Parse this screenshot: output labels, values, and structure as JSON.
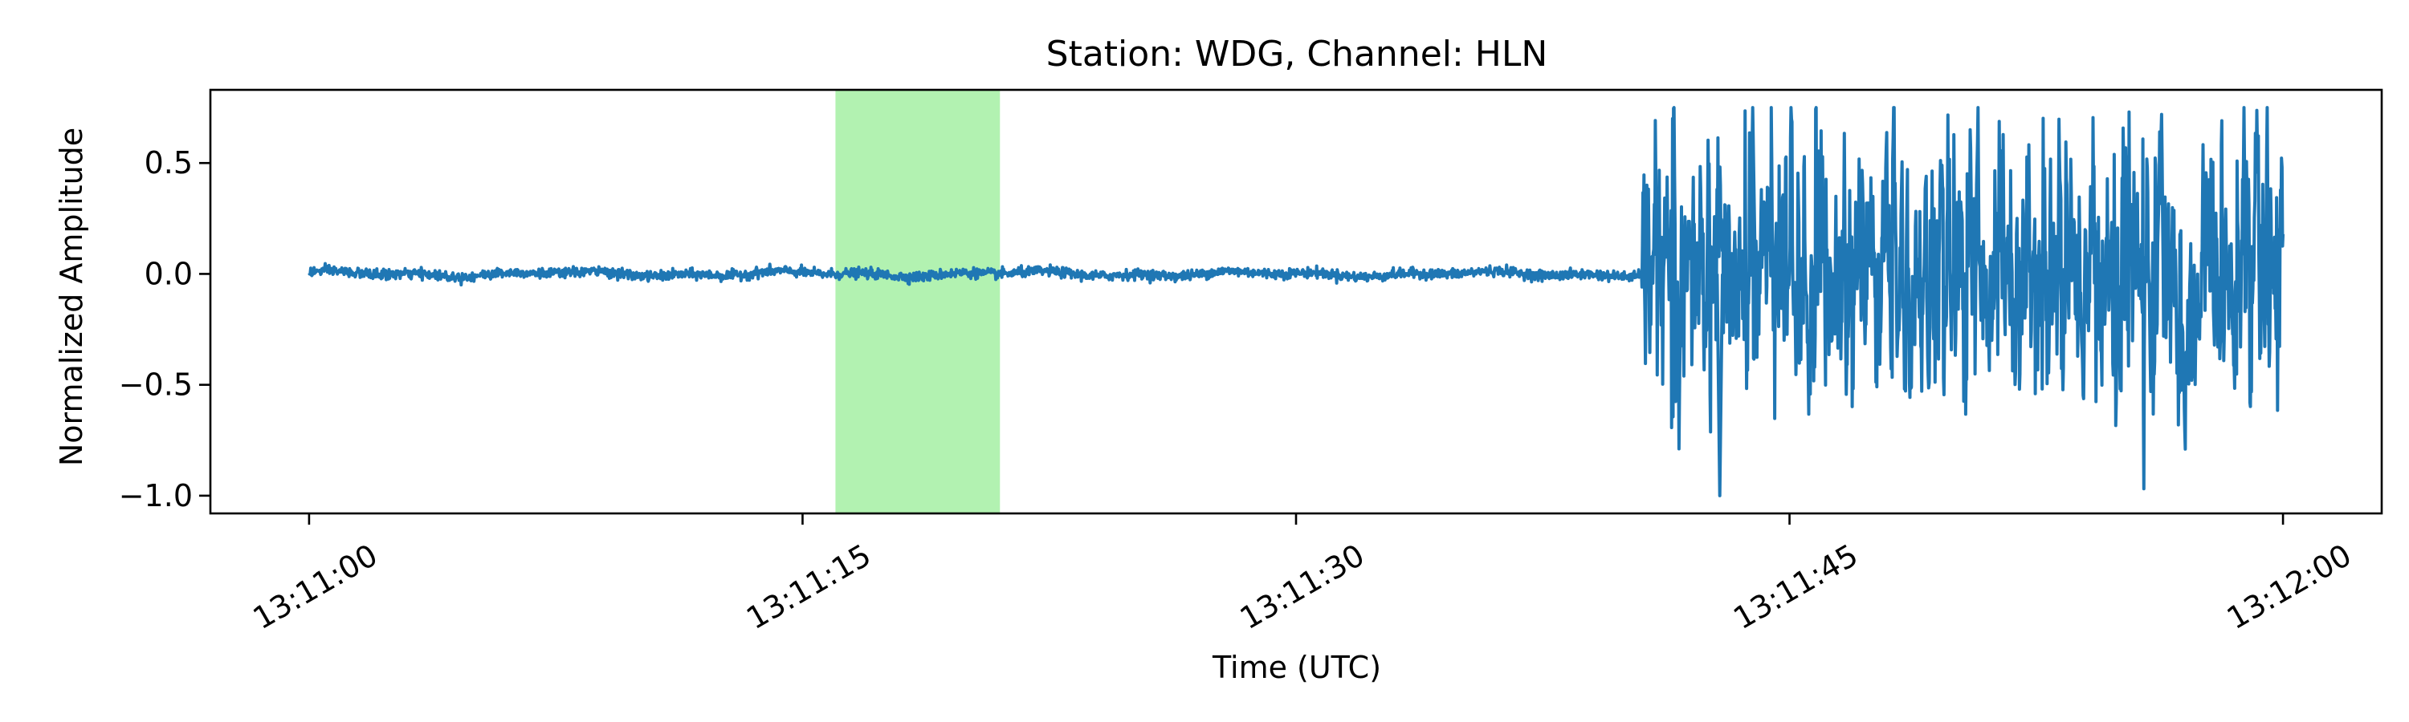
{
  "chart_data": {
    "type": "line",
    "title": "Station: WDG, Channel: HLN",
    "xlabel": "Time (UTC)",
    "ylabel": "Normalized Amplitude",
    "x_range": [
      "13:11:00",
      "13:12:00"
    ],
    "xlim": [
      "13:10:57",
      "13:12:03"
    ],
    "ylim": [
      -1.08,
      0.83
    ],
    "x_ticks": [
      "13:11:00",
      "13:11:15",
      "13:11:30",
      "13:11:45",
      "13:12:00"
    ],
    "y_ticks": [
      0.5,
      0.0,
      -0.5,
      -1.0
    ],
    "y_tick_labels": [
      "0.5",
      "0.0",
      "−0.5",
      "−1.0"
    ],
    "grid": false,
    "line_color": "#1f77b4",
    "highlight": {
      "start": "13:11:16",
      "end": "13:11:21",
      "color": "#b2f2b1"
    },
    "trace": {
      "pre_event_amplitude": 0.02,
      "event_onset": "13:11:40.5",
      "event_max": 0.75,
      "event_min": -1.0,
      "event_rms": 0.2
    }
  }
}
